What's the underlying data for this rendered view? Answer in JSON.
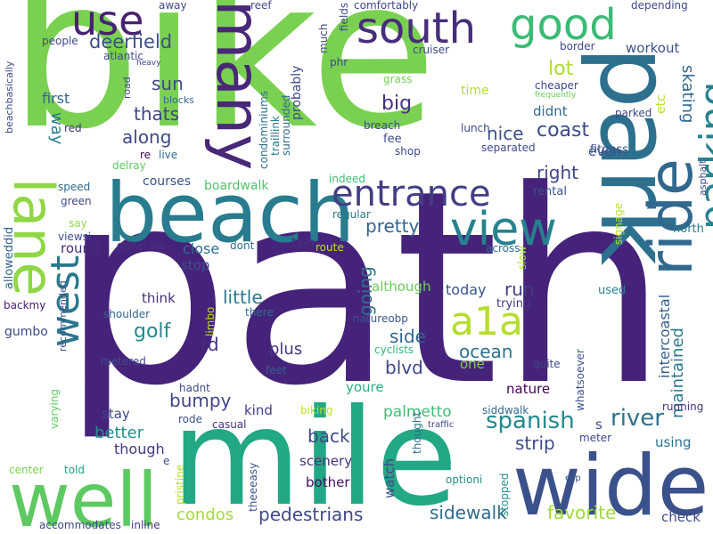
{
  "words": [
    {
      "text": "path",
      "color": "#46237a"
    },
    {
      "text": "bike",
      "color": "#7ad151"
    },
    {
      "text": "mile",
      "color": "#22a884"
    },
    {
      "text": "beach",
      "color": "#287c8e"
    },
    {
      "text": "park",
      "color": "#2d708e"
    },
    {
      "text": "wide",
      "color": "#3b518b"
    },
    {
      "text": "many",
      "color": "#482878"
    },
    {
      "text": "well",
      "color": "#5ec962"
    },
    {
      "text": "lane",
      "color": "#8fd744"
    },
    {
      "text": "west",
      "color": "#2a788e"
    },
    {
      "text": "ride",
      "color": "#31688e"
    },
    {
      "text": "view",
      "color": "#26828e"
    },
    {
      "text": "parking",
      "color": "#26828e"
    },
    {
      "text": "entrance",
      "color": "#433e85"
    },
    {
      "text": "south",
      "color": "#472d7b"
    },
    {
      "text": "good",
      "color": "#3bbb75"
    },
    {
      "text": "use",
      "color": "#482173"
    },
    {
      "text": "a1a",
      "color": "#b5de2b"
    },
    {
      "text": "spanish",
      "color": "#23898e"
    },
    {
      "text": "river",
      "color": "#2c728e"
    },
    {
      "text": "pedestrians",
      "color": "#3e4989"
    },
    {
      "text": "sidewalk",
      "color": "#2f6c8e"
    },
    {
      "text": "favorite",
      "color": "#a0da39"
    },
    {
      "text": "deerfield",
      "color": "#3d4e8a"
    },
    {
      "text": "skating",
      "color": "#31688e"
    },
    {
      "text": "maintained",
      "color": "#2a788e"
    },
    {
      "text": "intercoastal",
      "color": "#355f8d"
    },
    {
      "text": "coast",
      "color": "#3e4a89"
    },
    {
      "text": "nice",
      "color": "#3c508b"
    },
    {
      "text": "pretty",
      "color": "#33638d"
    },
    {
      "text": "going",
      "color": "#2c728e"
    },
    {
      "text": "golf",
      "color": "#23898e"
    },
    {
      "text": "along",
      "color": "#3e4a89"
    },
    {
      "text": "thats",
      "color": "#414487"
    },
    {
      "text": "sun",
      "color": "#404688"
    },
    {
      "text": "lot",
      "color": "#addc30"
    },
    {
      "text": "big",
      "color": "#46327e"
    },
    {
      "text": "right",
      "color": "#3f4788"
    },
    {
      "text": "strip",
      "color": "#3e4c8a"
    },
    {
      "text": "little",
      "color": "#2a788e"
    },
    {
      "text": "palmetto",
      "color": "#3fbc73"
    },
    {
      "text": "back",
      "color": "#3e4989"
    },
    {
      "text": "bumpy",
      "color": "#404588"
    },
    {
      "text": "ocean",
      "color": "#2d718e"
    },
    {
      "text": "side",
      "color": "#31678e"
    },
    {
      "text": "blvd",
      "color": "#3e4989"
    },
    {
      "text": "rd",
      "color": "#472f7d"
    },
    {
      "text": "way",
      "color": "#287d8e"
    },
    {
      "text": "run",
      "color": "#433d84"
    },
    {
      "text": "plus",
      "color": "#453781"
    },
    {
      "text": "condos",
      "color": "#a5db36"
    },
    {
      "text": "better",
      "color": "#21918c"
    },
    {
      "text": "though",
      "color": "#453882"
    },
    {
      "text": "first",
      "color": "#33638d"
    },
    {
      "text": "courses",
      "color": "#3b528b"
    },
    {
      "text": "boardwalk",
      "color": "#50c46a"
    },
    {
      "text": "round",
      "color": "#472d7b"
    },
    {
      "text": "close",
      "color": "#2e6e8e"
    },
    {
      "text": "stop",
      "color": "#3b518b"
    },
    {
      "text": "ten",
      "color": "#46307e"
    },
    {
      "text": "dont",
      "color": "#46307e"
    },
    {
      "text": "think",
      "color": "#39558c"
    },
    {
      "text": "today",
      "color": "#6ccd5a"
    },
    {
      "text": "although",
      "color": "#29af7f"
    },
    {
      "text": "youre",
      "color": "#7ad151"
    },
    {
      "text": "one",
      "color": "#440154"
    },
    {
      "text": "nature",
      "color": "#404688"
    },
    {
      "text": "stay",
      "color": "#433e85"
    },
    {
      "text": "kind",
      "color": "#471164"
    },
    {
      "text": "bother",
      "color": "#46327e"
    },
    {
      "text": "scenery",
      "color": "#3e4989"
    },
    {
      "text": "watch",
      "color": "#3b518b"
    },
    {
      "text": "workout",
      "color": "#2f6b8e"
    },
    {
      "text": "didnt",
      "color": "#3b528b"
    },
    {
      "text": "even",
      "color": "#b8de29"
    },
    {
      "text": "etc",
      "color": "#b5de2b"
    },
    {
      "text": "time",
      "color": "#3e4989"
    },
    {
      "text": "fee",
      "color": "#3f4788"
    },
    {
      "text": "lunch",
      "color": "#3e4a89"
    },
    {
      "text": "separated",
      "color": "#3b528b"
    },
    {
      "text": "fitness",
      "color": "#39558c"
    },
    {
      "text": "rental",
      "color": "#3dbc74"
    },
    {
      "text": "indeed",
      "color": "#2a788e"
    },
    {
      "text": "regular",
      "color": "#2f6c8e"
    },
    {
      "text": "route",
      "color": "#bddf26"
    },
    {
      "text": "across",
      "color": "#2d708e"
    },
    {
      "text": "trying",
      "color": "#453781"
    },
    {
      "text": "used",
      "color": "#277f8e"
    },
    {
      "text": "north",
      "color": "#2a788e"
    },
    {
      "text": "signage",
      "color": "#b8de29"
    },
    {
      "text": "slow",
      "color": "#a2da37"
    },
    {
      "text": "quite",
      "color": "#3e4989"
    },
    {
      "text": "whatsoever",
      "color": "#3b528b"
    },
    {
      "text": "running",
      "color": "#46307e"
    },
    {
      "text": "using",
      "color": "#2d718e"
    },
    {
      "text": "check",
      "color": "#3e4c8a"
    },
    {
      "text": "stopped",
      "color": "#20928c"
    },
    {
      "text": "optioni",
      "color": "#21918c"
    },
    {
      "text": "esp",
      "color": "#3b518b"
    },
    {
      "text": "meter",
      "color": "#3e4a89"
    },
    {
      "text": "siddwalk",
      "color": "#31688e"
    },
    {
      "text": "thought",
      "color": "#2e6f8e"
    },
    {
      "text": "traffic",
      "color": "#3e4989"
    },
    {
      "text": "biking",
      "color": "#c0df25"
    },
    {
      "text": "cyclists",
      "color": "#35b779"
    },
    {
      "text": "feet",
      "color": "#34618d"
    },
    {
      "text": "there",
      "color": "#2d708e"
    },
    {
      "text": "natureobp",
      "color": "#39568c"
    },
    {
      "text": "shoulder",
      "color": "#31688e"
    },
    {
      "text": "metered",
      "color": "#3e4989"
    },
    {
      "text": "hadnt",
      "color": "#3e4989"
    },
    {
      "text": "rode",
      "color": "#3b528b"
    },
    {
      "text": "casual",
      "color": "#46307e"
    },
    {
      "text": "told",
      "color": "#1fa088"
    },
    {
      "text": "center",
      "color": "#7ad151"
    },
    {
      "text": "pristine",
      "color": "#b5de2b"
    },
    {
      "text": "theeeasy",
      "color": "#3b518b"
    },
    {
      "text": "accommodates",
      "color": "#3e4989"
    },
    {
      "text": "inline",
      "color": "#453781"
    },
    {
      "text": "gumbo",
      "color": "#3e4989"
    },
    {
      "text": "varying",
      "color": "#5ec962"
    },
    {
      "text": "limbo",
      "color": "#c2df23"
    },
    {
      "text": "recommended",
      "color": "#3b518b"
    },
    {
      "text": "backmy",
      "color": "#481b6d"
    },
    {
      "text": "alloweddid",
      "color": "#33638d"
    },
    {
      "text": "speed",
      "color": "#2f6c8e"
    },
    {
      "text": "green",
      "color": "#3e4989"
    },
    {
      "text": "viewsi",
      "color": "#3e4989"
    },
    {
      "text": "say",
      "color": "#8fd744"
    },
    {
      "text": "generate",
      "color": "#46307e"
    },
    {
      "text": "delray",
      "color": "#5ec962"
    },
    {
      "text": "re",
      "color": "#440154"
    },
    {
      "text": "live",
      "color": "#2d708e"
    },
    {
      "text": "red",
      "color": "#46327e"
    },
    {
      "text": "blocks",
      "color": "#31688e"
    },
    {
      "text": "road",
      "color": "#3e4989"
    },
    {
      "text": "heavy",
      "color": "#3e4989"
    },
    {
      "text": "atlantic",
      "color": "#3e4989"
    },
    {
      "text": "people",
      "color": "#3e4989"
    },
    {
      "text": "beachbasically",
      "color": "#3e4989"
    },
    {
      "text": "away",
      "color": "#3e4989"
    },
    {
      "text": "reef",
      "color": "#3e4989"
    },
    {
      "text": "condominiums",
      "color": "#2d708e"
    },
    {
      "text": "traillink",
      "color": "#2a788e"
    },
    {
      "text": "probably",
      "color": "#3e4989"
    },
    {
      "text": "surrounded",
      "color": "#31688e"
    },
    {
      "text": "much",
      "color": "#3e4989"
    },
    {
      "text": "fields",
      "color": "#3e4989"
    },
    {
      "text": "phr",
      "color": "#3e4989"
    },
    {
      "text": "comfortably",
      "color": "#3e4989"
    },
    {
      "text": "cruiser",
      "color": "#3e4989"
    },
    {
      "text": "grass",
      "color": "#73d056"
    },
    {
      "text": "breach",
      "color": "#3e4989"
    },
    {
      "text": "shop",
      "color": "#3e4989"
    },
    {
      "text": "depending",
      "color": "#3e4989"
    },
    {
      "text": "border",
      "color": "#3e4989"
    },
    {
      "text": "cheaper",
      "color": "#3e4989"
    },
    {
      "text": "frequently",
      "color": "#6ccd5a"
    },
    {
      "text": "parked",
      "color": "#3e4989"
    },
    {
      "text": "asphalt",
      "color": "#3e4989"
    },
    {
      "text": "s",
      "color": "#3e4989"
    },
    {
      "text": "e",
      "color": "#3e4989"
    }
  ]
}
